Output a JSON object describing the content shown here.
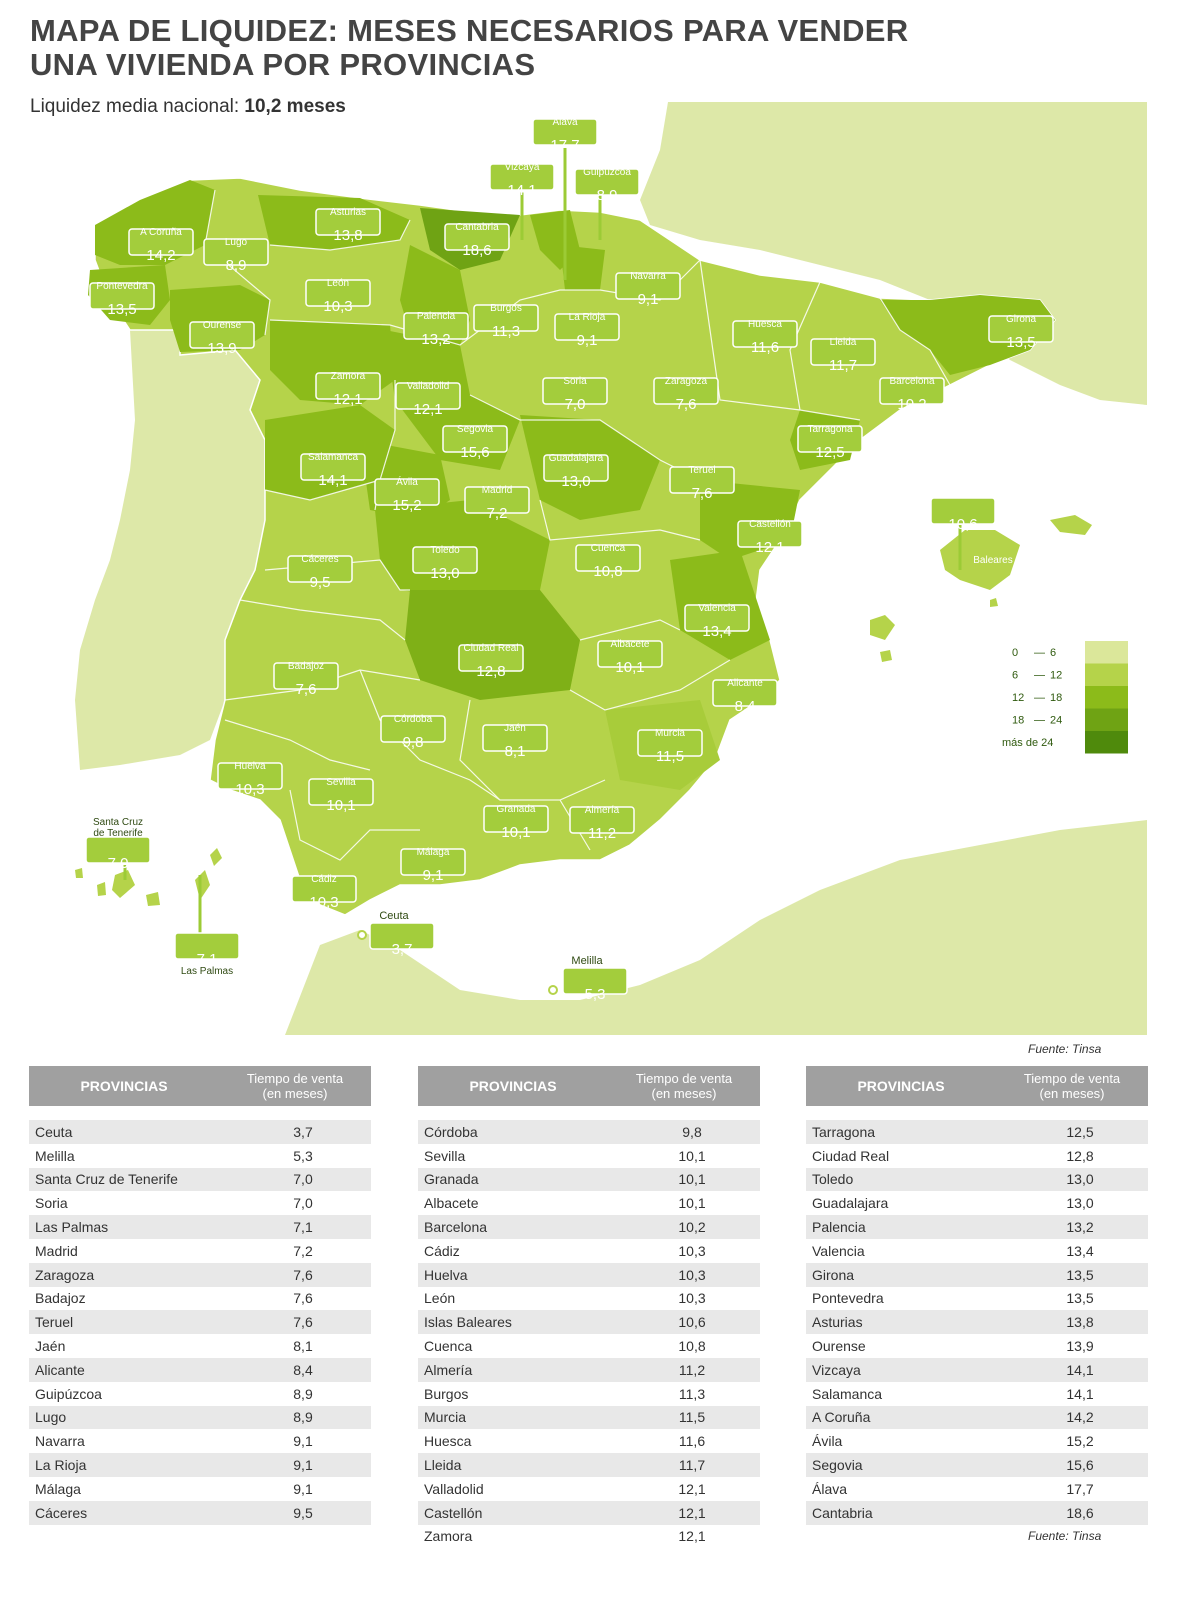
{
  "title_line1": "MAPA DE LIQUIDEZ: MESES NECESARIOS PARA VENDER",
  "title_line2": "UNA VIVIENDA POR PROVINCIAS",
  "subtitle_prefix": "Liquidez media nacional:",
  "subtitle_value": "10,2 meses",
  "source": "Fuente: Tinsa",
  "legend": [
    {
      "label_from": "0",
      "label_to": "6",
      "color": "#dbe79a"
    },
    {
      "label_from": "6",
      "label_to": "12",
      "color": "#b5d34a"
    },
    {
      "label_from": "12",
      "label_to": "18",
      "color": "#8cbb1a"
    },
    {
      "label_from": "18",
      "label_to": "24",
      "color": "#6fa314"
    },
    {
      "label_from": "más de 24",
      "label_to": "",
      "color": "#4f8a0c"
    }
  ],
  "map_labels": [
    {
      "name": "Álava",
      "value": "17,7"
    },
    {
      "name": "Vizcaya",
      "value": "14,1"
    },
    {
      "name": "Guipúzcoa",
      "value": "8,9"
    },
    {
      "name": "Asturias",
      "value": "13,8"
    },
    {
      "name": "Cantabria",
      "value": "18,6"
    },
    {
      "name": "A Coruña",
      "value": "14,2"
    },
    {
      "name": "Lugo",
      "value": "8,9"
    },
    {
      "name": "Pontevedra",
      "value": "13,5"
    },
    {
      "name": "León",
      "value": "10,3"
    },
    {
      "name": "Navarra",
      "value": "9,1"
    },
    {
      "name": "Burgos",
      "value": "11,3"
    },
    {
      "name": "Palencia",
      "value": "13,2"
    },
    {
      "name": "Ourense",
      "value": "13,9"
    },
    {
      "name": "La Rioja",
      "value": "9,1"
    },
    {
      "name": "Huesca",
      "value": "11,6"
    },
    {
      "name": "Girona",
      "value": "13,5"
    },
    {
      "name": "Lleida",
      "value": "11,7"
    },
    {
      "name": "Zamora",
      "value": "12,1"
    },
    {
      "name": "Soria",
      "value": "7,0"
    },
    {
      "name": "Zaragoza",
      "value": "7,6"
    },
    {
      "name": "Barcelona",
      "value": "10,2"
    },
    {
      "name": "Valladolid",
      "value": "12,1"
    },
    {
      "name": "Tarragona",
      "value": "12,5"
    },
    {
      "name": "Segovia",
      "value": "15,6"
    },
    {
      "name": "Salamanca",
      "value": "14,1"
    },
    {
      "name": "Guadalajara",
      "value": "13,0"
    },
    {
      "name": "Teruel",
      "value": "7,6"
    },
    {
      "name": "Ávila",
      "value": "15,2"
    },
    {
      "name": "Madrid",
      "value": "7,2"
    },
    {
      "name": "Castellón",
      "value": "12,1"
    },
    {
      "name": "Baleares",
      "value": "10,6"
    },
    {
      "name": "Cáceres",
      "value": "9,5"
    },
    {
      "name": "Toledo",
      "value": "13,0"
    },
    {
      "name": "Cuenca",
      "value": "10,8"
    },
    {
      "name": "Valencia",
      "value": "13,4"
    },
    {
      "name": "Ciudad Real",
      "value": "12,8"
    },
    {
      "name": "Albacete",
      "value": "10,1"
    },
    {
      "name": "Badajoz",
      "value": "7,6"
    },
    {
      "name": "Alicante",
      "value": "8,4"
    },
    {
      "name": "Córdoba",
      "value": "9,8"
    },
    {
      "name": "Jaén",
      "value": "8,1"
    },
    {
      "name": "Murcia",
      "value": "11,5"
    },
    {
      "name": "Huelva",
      "value": "10,3"
    },
    {
      "name": "Sevilla",
      "value": "10,1"
    },
    {
      "name": "Granada",
      "value": "10,1"
    },
    {
      "name": "Almería",
      "value": "11,2"
    },
    {
      "name": "Santa Cruz de Tenerife",
      "value": "7,0"
    },
    {
      "name": "Málaga",
      "value": "9,1"
    },
    {
      "name": "Cádiz",
      "value": "10,3"
    },
    {
      "name": "Las Palmas",
      "value": "7,1"
    },
    {
      "name": "Ceuta",
      "value": "3,7"
    },
    {
      "name": "Melilla",
      "value": "5,3"
    }
  ],
  "table_header": {
    "col1": "PROVINCIAS",
    "col2_line1": "Tiempo de venta",
    "col2_line2": "(en meses)"
  },
  "tables": [
    [
      {
        "p": "Ceuta",
        "v": "3,7"
      },
      {
        "p": "Melilla",
        "v": "5,3"
      },
      {
        "p": "Santa Cruz de Tenerife",
        "v": "7,0"
      },
      {
        "p": "Soria",
        "v": "7,0"
      },
      {
        "p": "Las Palmas",
        "v": "7,1"
      },
      {
        "p": "Madrid",
        "v": "7,2"
      },
      {
        "p": "Zaragoza",
        "v": "7,6"
      },
      {
        "p": "Badajoz",
        "v": "7,6"
      },
      {
        "p": "Teruel",
        "v": "7,6"
      },
      {
        "p": "Jaén",
        "v": "8,1"
      },
      {
        "p": "Alicante",
        "v": "8,4"
      },
      {
        "p": "Guipúzcoa",
        "v": "8,9"
      },
      {
        "p": "Lugo",
        "v": "8,9"
      },
      {
        "p": "Navarra",
        "v": "9,1"
      },
      {
        "p": "La Rioja",
        "v": "9,1"
      },
      {
        "p": "Málaga",
        "v": "9,1"
      },
      {
        "p": "Cáceres",
        "v": "9,5"
      }
    ],
    [
      {
        "p": "Córdoba",
        "v": "9,8"
      },
      {
        "p": "Sevilla",
        "v": "10,1"
      },
      {
        "p": "Granada",
        "v": "10,1"
      },
      {
        "p": "Albacete",
        "v": "10,1"
      },
      {
        "p": "Barcelona",
        "v": "10,2"
      },
      {
        "p": "Cádiz",
        "v": "10,3"
      },
      {
        "p": "Huelva",
        "v": "10,3"
      },
      {
        "p": "León",
        "v": "10,3"
      },
      {
        "p": "Islas Baleares",
        "v": "10,6"
      },
      {
        "p": "Cuenca",
        "v": "10,8"
      },
      {
        "p": "Almería",
        "v": "11,2"
      },
      {
        "p": "Burgos",
        "v": "11,3"
      },
      {
        "p": "Murcia",
        "v": "11,5"
      },
      {
        "p": "Huesca",
        "v": "11,6"
      },
      {
        "p": "Lleida",
        "v": "11,7"
      },
      {
        "p": "Valladolid",
        "v": "12,1"
      },
      {
        "p": "Castellón",
        "v": "12,1"
      },
      {
        "p": "Zamora",
        "v": "12,1"
      }
    ],
    [
      {
        "p": "Tarragona",
        "v": "12,5"
      },
      {
        "p": "Ciudad Real",
        "v": "12,8"
      },
      {
        "p": "Toledo",
        "v": "13,0"
      },
      {
        "p": "Guadalajara",
        "v": "13,0"
      },
      {
        "p": "Palencia",
        "v": "13,2"
      },
      {
        "p": "Valencia",
        "v": "13,4"
      },
      {
        "p": "Girona",
        "v": "13,5"
      },
      {
        "p": "Pontevedra",
        "v": "13,5"
      },
      {
        "p": "Asturias",
        "v": "13,8"
      },
      {
        "p": "Ourense",
        "v": "13,9"
      },
      {
        "p": "Vizcaya",
        "v": "14,1"
      },
      {
        "p": "Salamanca",
        "v": "14,1"
      },
      {
        "p": "A Coruña",
        "v": "14,2"
      },
      {
        "p": "Ávila",
        "v": "15,2"
      },
      {
        "p": "Segovia",
        "v": "15,6"
      },
      {
        "p": "Álava",
        "v": "17,7"
      },
      {
        "p": "Cantabria",
        "v": "18,6"
      }
    ]
  ]
}
